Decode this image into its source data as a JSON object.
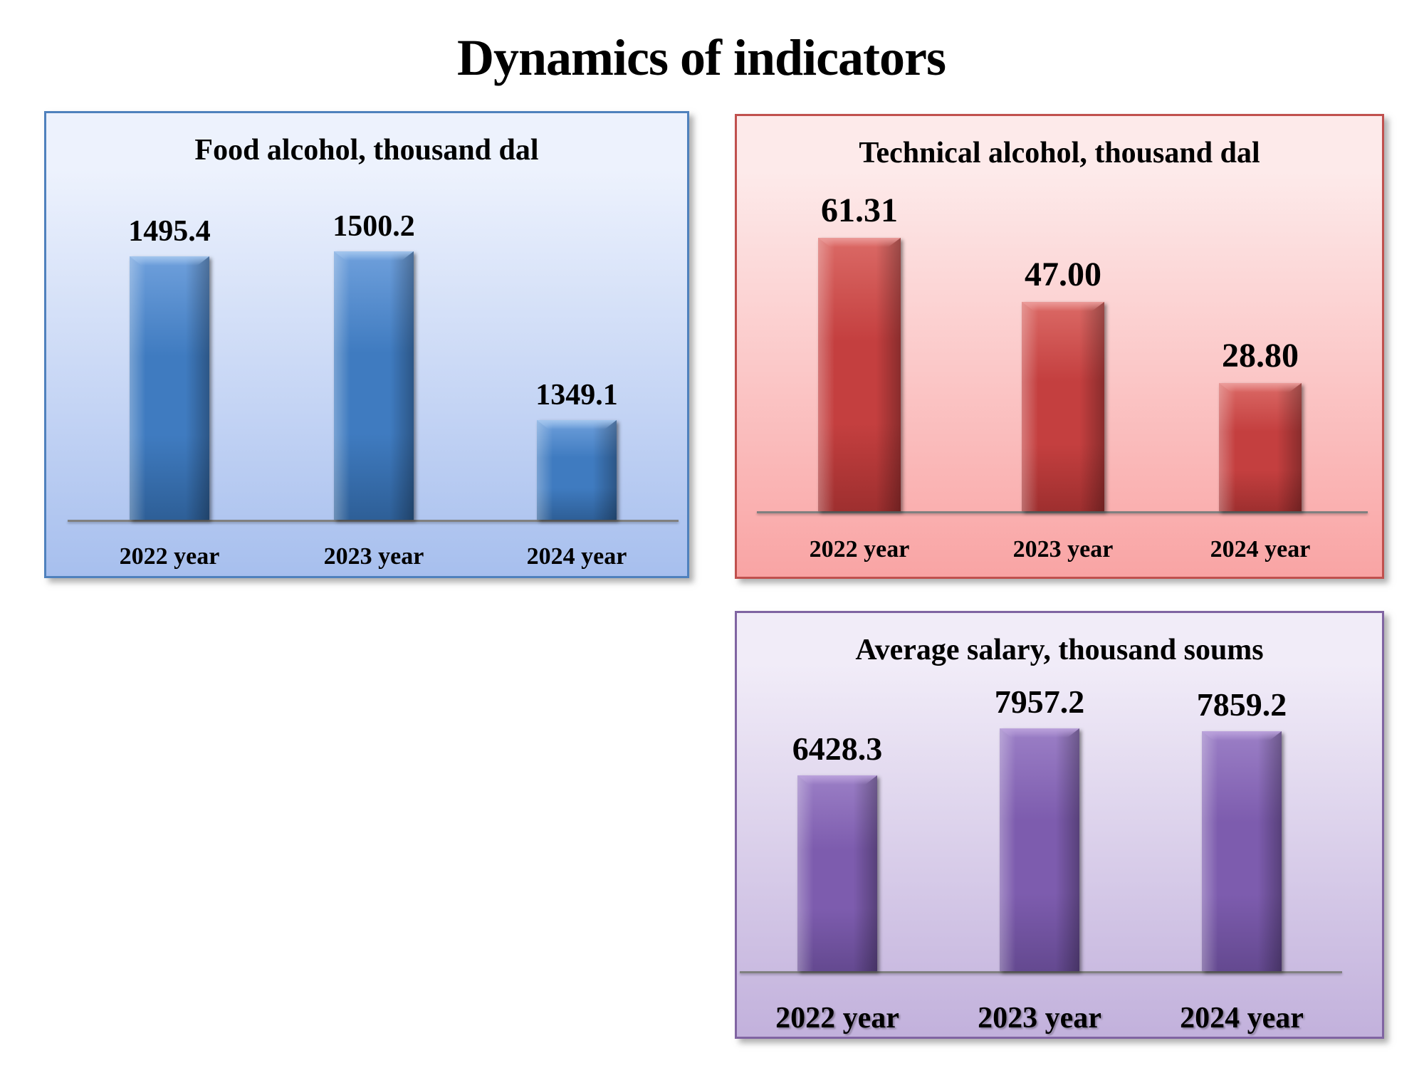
{
  "page": {
    "title": "Dynamics of indicators"
  },
  "chart_data": [
    {
      "type": "bar",
      "title": "Food alcohol, thousand dal",
      "categories": [
        "2022 year",
        "2023 year",
        "2024 year"
      ],
      "values": [
        1495.4,
        1500.2,
        1349.1
      ],
      "value_labels": [
        "1495.4",
        "1500.2",
        "1349.1"
      ],
      "xlabel": "",
      "ylabel": "",
      "ylim": [
        1260,
        1560
      ],
      "grid": false,
      "legend": false,
      "colors": {
        "bar": "#3F7BC0",
        "bar_light": "#6FA0DC",
        "bar_dark": "#2E5F97",
        "cap": "#A4C6EE",
        "panel_border": "#4F81BD",
        "bg_top": "#EDF2FD",
        "bg_bottom": "#A7BFEE",
        "axis": "#808080"
      }
    },
    {
      "type": "bar",
      "title": "Technical alcohol, thousand dal",
      "categories": [
        "2022 year",
        "2023 year",
        "2024 year"
      ],
      "values": [
        61.31,
        47.0,
        28.8
      ],
      "value_labels": [
        "61.31",
        "47.00",
        "28.80"
      ],
      "xlabel": "",
      "ylabel": "",
      "ylim": [
        0,
        65
      ],
      "grid": false,
      "legend": false,
      "colors": {
        "bar": "#C43F3F",
        "bar_light": "#DB6A66",
        "bar_dark": "#9E2F2F",
        "cap": "#EC9C9A",
        "panel_border": "#C0504D",
        "bg_top": "#FDEAEA",
        "bg_bottom": "#F9A4A4",
        "axis": "#808080"
      }
    },
    {
      "type": "bar",
      "title": "Average salary, thousand soums",
      "categories": [
        "2022 year",
        "2023 year",
        "2024 year"
      ],
      "values": [
        6428.3,
        7957.2,
        7859.2
      ],
      "value_labels": [
        "6428.3",
        "7957.2",
        "7859.2"
      ],
      "xlabel": "",
      "ylabel": "",
      "ylim": [
        0,
        8800
      ],
      "grid": false,
      "legend": false,
      "colors": {
        "bar": "#7D5CAE",
        "bar_light": "#9B7FC6",
        "bar_dark": "#644990",
        "cap": "#BBA2DC",
        "panel_border": "#8064A2",
        "bg_top": "#F1ECF8",
        "bg_bottom": "#C2B1DC",
        "axis": "#808080"
      }
    }
  ]
}
